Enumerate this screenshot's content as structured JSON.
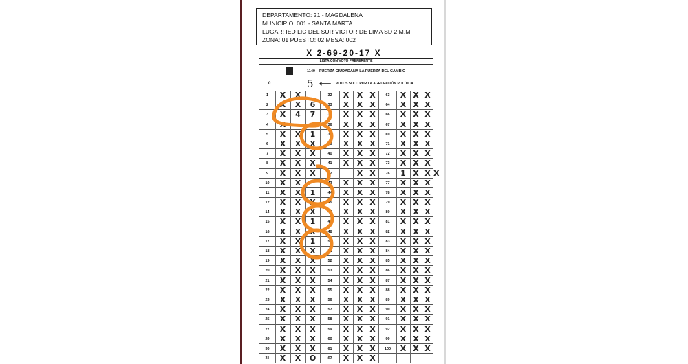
{
  "header": {
    "lines": [
      "DEPARTAMENTO: 21 - MAGDALENA",
      "MUNICIPIO: 001 - SANTA MARTA",
      "LUGAR: IED LIC DEL SUR VICTOR DE LIMA SD 2 M.M",
      "ZONA: 01  PUESTO: 02  MESA: 002"
    ]
  },
  "code": "X  2-69-20-17  X",
  "form": {
    "subtitle": "LISTA CON VOTO PREFERENTE",
    "party_number": "1140",
    "party_name": "FUERZA CIUDADANA LA FUERZA DEL CAMBIO",
    "zero_label": "0",
    "party_only_votes": "5",
    "arrow": "⟵",
    "party_only_label": "VOTOS SOLO POR LA AGRUPACIÓN POLÍTICA"
  },
  "accent": "#f08a24",
  "rows": [
    {
      "n": [
        "1",
        "32",
        "63"
      ],
      "m": "XX XXXXXX"
    },
    {
      "n": [
        "2",
        "33",
        "64"
      ],
      "m": "XX6XXXXXX"
    },
    {
      "n": [
        "3",
        "35",
        "66"
      ],
      "m": "X47XXXXXX"
    },
    {
      "n": [
        "4",
        "36",
        "67"
      ],
      "m": "X  XXXXXX"
    },
    {
      "n": [
        "5",
        "37",
        "69"
      ],
      "m": "XX1XXXXXX"
    },
    {
      "n": [
        "6",
        "39",
        "71"
      ],
      "m": "XXXXXXXXX"
    },
    {
      "n": [
        "7",
        "40",
        "72"
      ],
      "m": "XXXXXXXXX"
    },
    {
      "n": [
        "8",
        "41",
        "73"
      ],
      "m": "XXXXXXXXX"
    },
    {
      "n": [
        "9",
        "42",
        "76"
      ],
      "m": "XXX XX1XXX"
    },
    {
      "n": [
        "10",
        "43",
        "77"
      ],
      "m": "XX XXXXXX"
    },
    {
      "n": [
        "11",
        "44",
        "78"
      ],
      "m": "XX1XXXXXX"
    },
    {
      "n": [
        "12",
        "45",
        "79"
      ],
      "m": "XXXXXXXXX"
    },
    {
      "n": [
        "14",
        "46",
        "80"
      ],
      "m": "XXXXXXXXX"
    },
    {
      "n": [
        "15",
        "47",
        "81"
      ],
      "m": "XX1XXXXXX"
    },
    {
      "n": [
        "16",
        "48",
        "82"
      ],
      "m": "XXXXXXXXX"
    },
    {
      "n": [
        "17",
        "50",
        "83"
      ],
      "m": "XX1XXXXXX"
    },
    {
      "n": [
        "18",
        "51",
        "84"
      ],
      "m": "XXXXXXXXX"
    },
    {
      "n": [
        "19",
        "52",
        "85"
      ],
      "m": "XXXXXXXXX"
    },
    {
      "n": [
        "20",
        "53",
        "86"
      ],
      "m": "XXXXXXXXX"
    },
    {
      "n": [
        "21",
        "54",
        "87"
      ],
      "m": "XXXXXXXXX"
    },
    {
      "n": [
        "22",
        "55",
        "88"
      ],
      "m": "XXXXXXXXX"
    },
    {
      "n": [
        "23",
        "56",
        "89"
      ],
      "m": "XXXXXXXXX"
    },
    {
      "n": [
        "24",
        "57",
        "90"
      ],
      "m": "XXXXXXXXX"
    },
    {
      "n": [
        "25",
        "58",
        "91"
      ],
      "m": "XXXXXXXXX"
    },
    {
      "n": [
        "27",
        "59",
        "92"
      ],
      "m": "XXXXXXXXX"
    },
    {
      "n": [
        "29",
        "60",
        "99"
      ],
      "m": "XXXXXXXXX"
    },
    {
      "n": [
        "30",
        "61",
        "100"
      ],
      "m": "XXXXXXXXX"
    },
    {
      "n": [
        "31",
        "62",
        ""
      ],
      "m": "XXOXXX   "
    }
  ]
}
